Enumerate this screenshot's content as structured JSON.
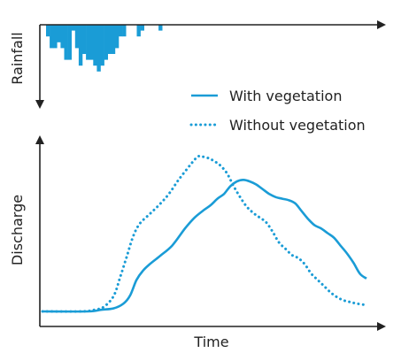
{
  "colors": {
    "series": "#1a9cd6",
    "bars": "#1a9cd6",
    "axis": "#222222",
    "text": "#222222"
  },
  "chart_data": [
    {
      "type": "bar",
      "orientation": "hanging",
      "title": "",
      "ylabel": "Rainfall",
      "xlabel": "",
      "ylim": [
        0,
        10
      ],
      "values": [
        2,
        4,
        4,
        3,
        4,
        6,
        6,
        1,
        4,
        7,
        5,
        6,
        6,
        7,
        8,
        7,
        6,
        5,
        5,
        4,
        2,
        2,
        0,
        0,
        0,
        2,
        1,
        0,
        0,
        0,
        0,
        1,
        0,
        0
      ],
      "grid": false
    },
    {
      "type": "line",
      "title": "",
      "xlabel": "Time",
      "ylabel": "Discharge",
      "xlim": [
        0,
        100
      ],
      "ylim": [
        0,
        100
      ],
      "grid": false,
      "legend": "top-right",
      "series": [
        {
          "name": "With vegetation",
          "style": "solid",
          "x": [
            0,
            14,
            18,
            22,
            25,
            27,
            29,
            31,
            33,
            36,
            40,
            44,
            47,
            50,
            52,
            54,
            56,
            58,
            60,
            62,
            64,
            66,
            68,
            70,
            72,
            74,
            76,
            78,
            80,
            82,
            84,
            86,
            88,
            90,
            92,
            94,
            96,
            98,
            100
          ],
          "y": [
            0,
            0,
            1,
            2,
            5,
            10,
            20,
            26,
            30,
            35,
            42,
            53,
            60,
            65,
            68,
            72,
            75,
            80,
            83,
            84,
            83,
            81,
            78,
            75,
            73,
            72,
            71,
            69,
            64,
            59,
            55,
            53,
            50,
            47,
            42,
            37,
            31,
            24,
            21
          ]
        },
        {
          "name": "Without vegetation",
          "style": "dotted",
          "x": [
            0,
            12,
            16,
            19,
            22,
            24,
            26,
            28,
            30,
            33,
            36,
            39,
            42,
            45,
            47,
            48,
            49,
            51,
            53,
            55,
            57,
            59,
            61,
            63,
            65,
            67,
            69,
            71,
            73,
            75,
            77,
            79,
            81,
            83,
            85,
            87,
            89,
            91,
            93,
            95,
            97,
            100
          ],
          "y": [
            0,
            0,
            1,
            3,
            10,
            22,
            35,
            48,
            56,
            62,
            68,
            75,
            84,
            92,
            97,
            99,
            99,
            98,
            96,
            93,
            88,
            80,
            73,
            67,
            63,
            60,
            57,
            51,
            44,
            40,
            36,
            34,
            30,
            24,
            20,
            16,
            12,
            9,
            7,
            6,
            5,
            4
          ]
        }
      ]
    }
  ]
}
